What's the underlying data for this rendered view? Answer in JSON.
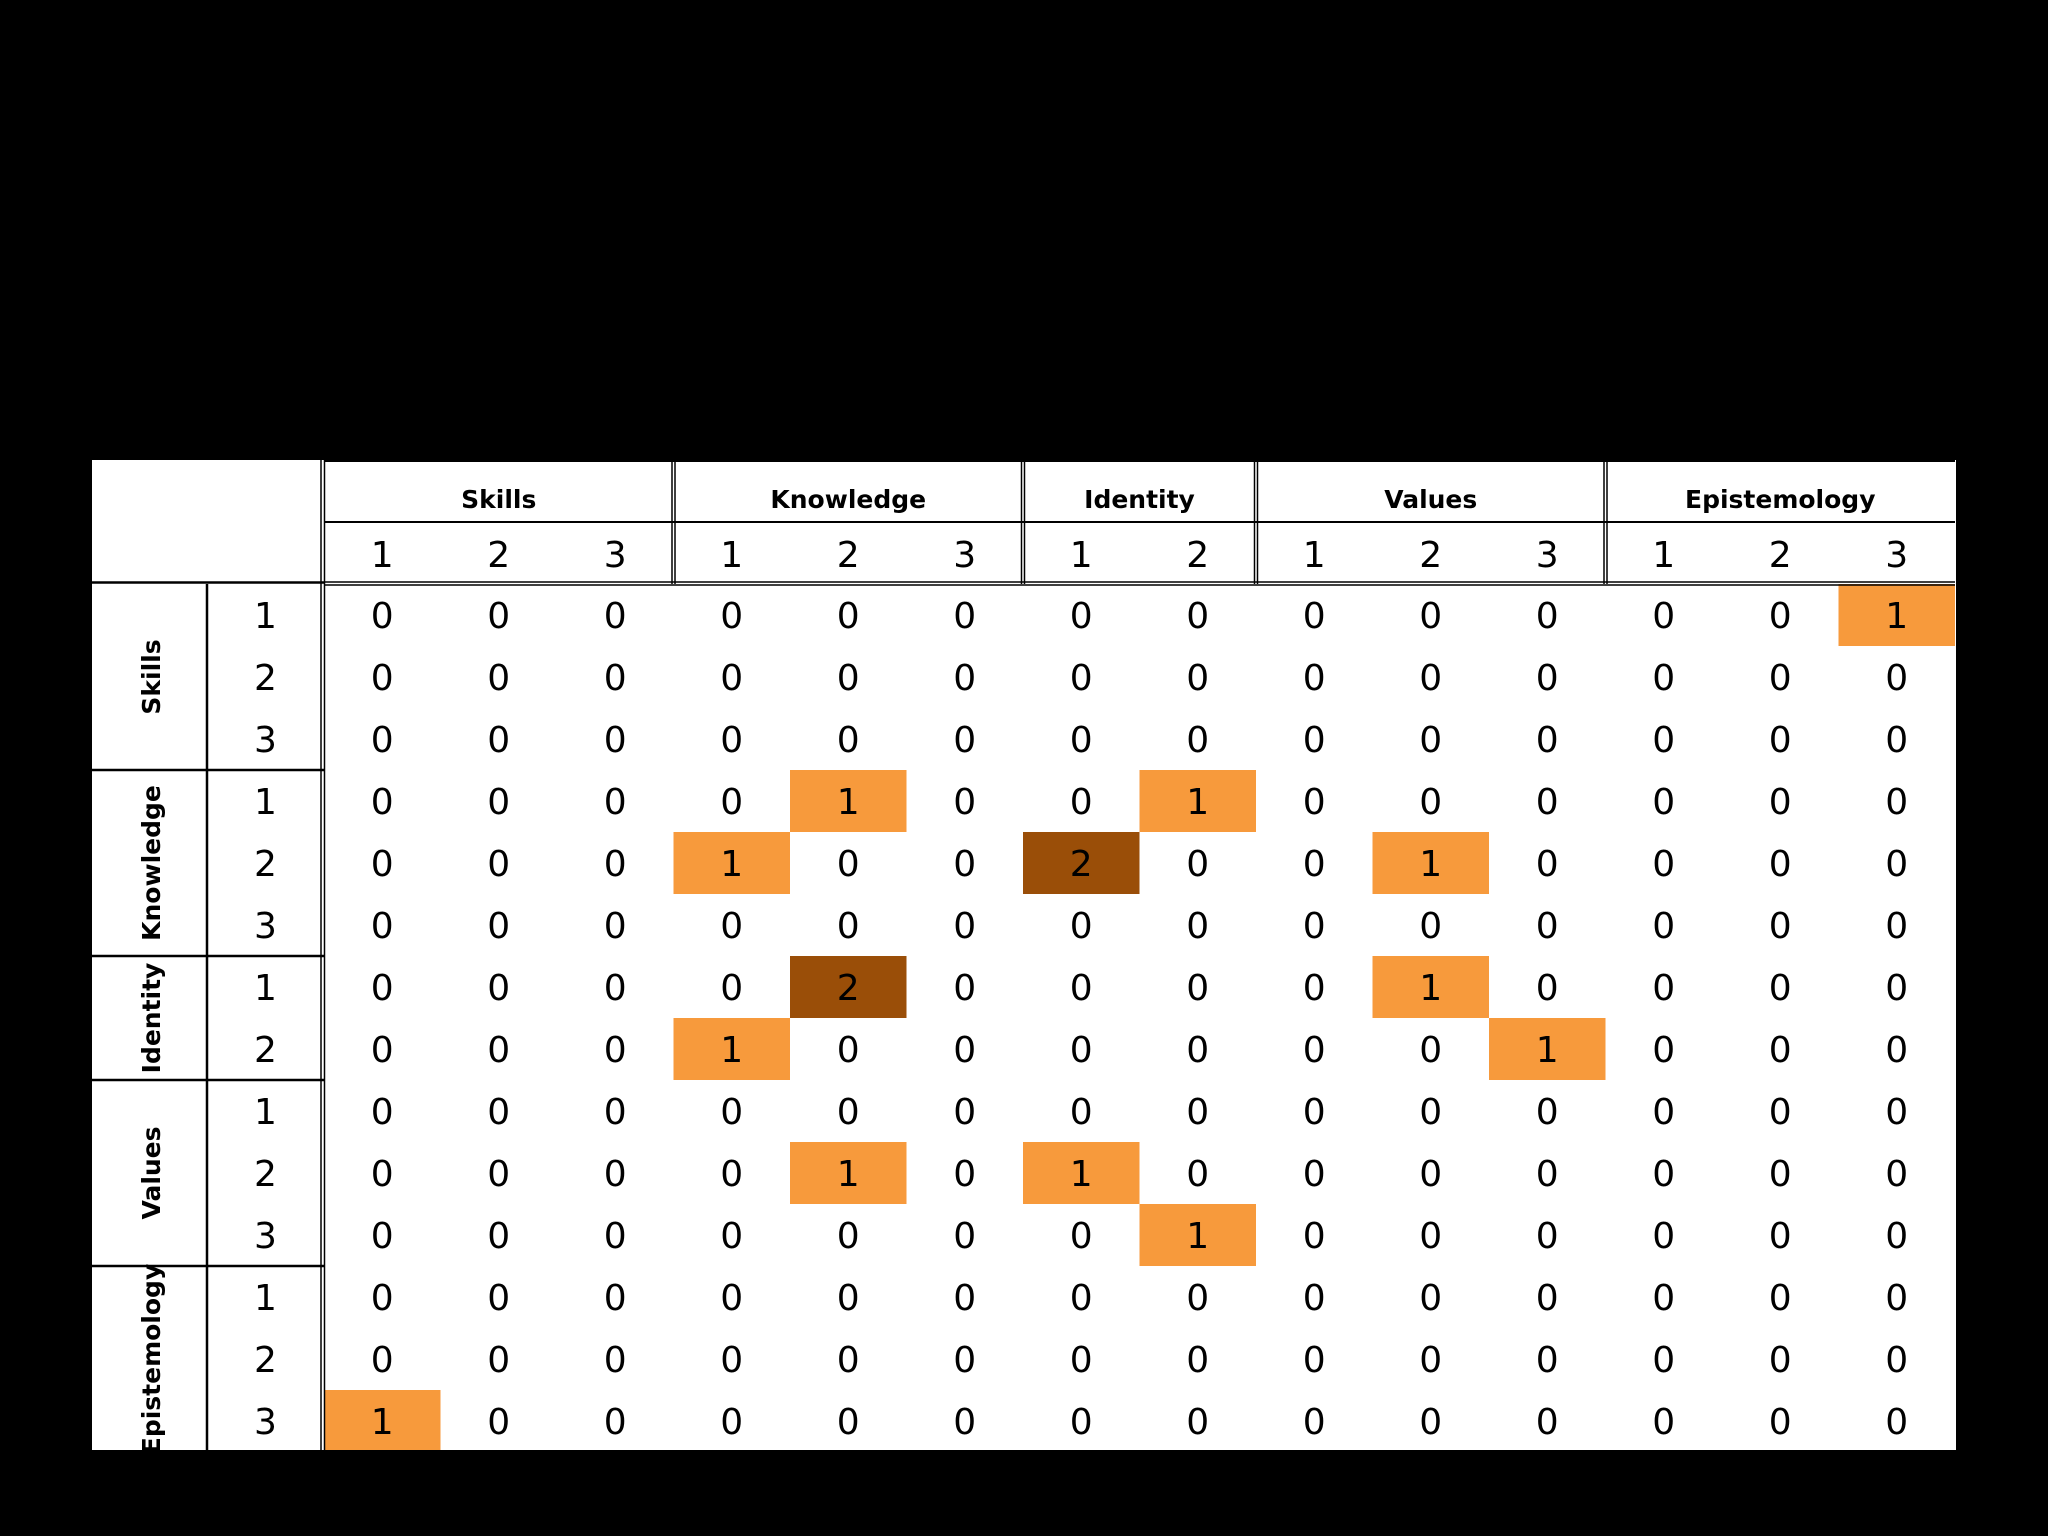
{
  "chart_data": {
    "type": "heatmap",
    "column_groups": [
      {
        "name": "Skills",
        "subs": [
          "1",
          "2",
          "3"
        ]
      },
      {
        "name": "Knowledge",
        "subs": [
          "1",
          "2",
          "3"
        ]
      },
      {
        "name": "Identity",
        "subs": [
          "1",
          "2"
        ]
      },
      {
        "name": "Values",
        "subs": [
          "1",
          "2",
          "3"
        ]
      },
      {
        "name": "Epistemology",
        "subs": [
          "1",
          "2",
          "3"
        ]
      }
    ],
    "row_groups": [
      {
        "name": "Skills",
        "subs": [
          "1",
          "2",
          "3"
        ]
      },
      {
        "name": "Knowledge",
        "subs": [
          "1",
          "2",
          "3"
        ]
      },
      {
        "name": "Identity",
        "subs": [
          "1",
          "2"
        ]
      },
      {
        "name": "Values",
        "subs": [
          "1",
          "2",
          "3"
        ]
      },
      {
        "name": "Epistemology",
        "subs": [
          "1",
          "2",
          "3"
        ]
      }
    ],
    "values": [
      [
        0,
        0,
        0,
        0,
        0,
        0,
        0,
        0,
        0,
        0,
        0,
        0,
        0,
        1
      ],
      [
        0,
        0,
        0,
        0,
        0,
        0,
        0,
        0,
        0,
        0,
        0,
        0,
        0,
        0
      ],
      [
        0,
        0,
        0,
        0,
        0,
        0,
        0,
        0,
        0,
        0,
        0,
        0,
        0,
        0
      ],
      [
        0,
        0,
        0,
        0,
        1,
        0,
        0,
        1,
        0,
        0,
        0,
        0,
        0,
        0
      ],
      [
        0,
        0,
        0,
        1,
        0,
        0,
        2,
        0,
        0,
        1,
        0,
        0,
        0,
        0
      ],
      [
        0,
        0,
        0,
        0,
        0,
        0,
        0,
        0,
        0,
        0,
        0,
        0,
        0,
        0
      ],
      [
        0,
        0,
        0,
        0,
        2,
        0,
        0,
        0,
        0,
        1,
        0,
        0,
        0,
        0
      ],
      [
        0,
        0,
        0,
        1,
        0,
        0,
        0,
        0,
        0,
        0,
        1,
        0,
        0,
        0
      ],
      [
        0,
        0,
        0,
        0,
        0,
        0,
        0,
        0,
        0,
        0,
        0,
        0,
        0,
        0
      ],
      [
        0,
        0,
        0,
        0,
        1,
        0,
        1,
        0,
        0,
        0,
        0,
        0,
        0,
        0
      ],
      [
        0,
        0,
        0,
        0,
        0,
        0,
        0,
        1,
        0,
        0,
        0,
        0,
        0,
        0
      ],
      [
        0,
        0,
        0,
        0,
        0,
        0,
        0,
        0,
        0,
        0,
        0,
        0,
        0,
        0
      ],
      [
        0,
        0,
        0,
        0,
        0,
        0,
        0,
        0,
        0,
        0,
        0,
        0,
        0,
        0
      ],
      [
        1,
        0,
        0,
        0,
        0,
        0,
        0,
        0,
        0,
        0,
        0,
        0,
        0,
        0
      ]
    ],
    "color_scale": {
      "0": "#ffffff",
      "1": "#f79a3c",
      "2": "#9a4e08"
    },
    "grid": false
  }
}
